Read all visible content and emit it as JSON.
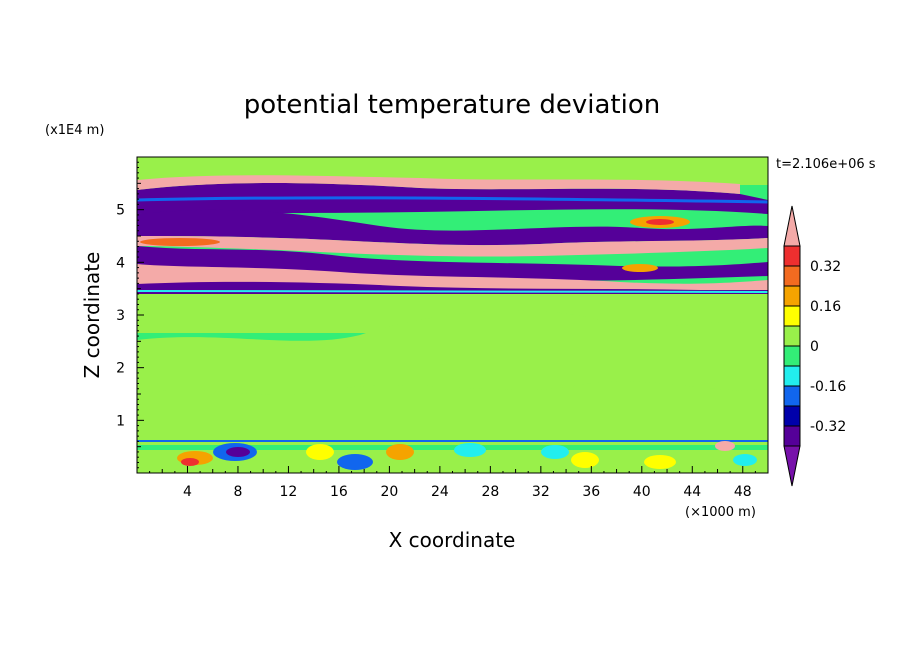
{
  "chart_data": {
    "type": "heatmap",
    "title": "potential temperature deviation",
    "xlabel": "X coordinate",
    "ylabel": "Z coordinate",
    "x_unit": "(×1000 m)",
    "y_unit": "(x1E4 m)",
    "time_label": "t=2.106e+06 s",
    "xlim": [
      0,
      50
    ],
    "ylim": [
      0,
      6
    ],
    "xticks": [
      4,
      8,
      12,
      16,
      20,
      24,
      28,
      32,
      36,
      40,
      44,
      48
    ],
    "yticks": [
      1,
      2,
      3,
      4,
      5
    ],
    "colorbar": {
      "labeled_values": [
        "0.32",
        "0.16",
        "0",
        "-0.16",
        "-0.32"
      ],
      "colors_top_to_bottom": [
        "#f4aaa8",
        "#ee2f2f",
        "#f36b20",
        "#f5a300",
        "#ffff00",
        "#99f04a",
        "#33ee77",
        "#22eeee",
        "#1166ee",
        "#0000aa",
        "#550099",
        "#7711aa"
      ]
    }
  }
}
